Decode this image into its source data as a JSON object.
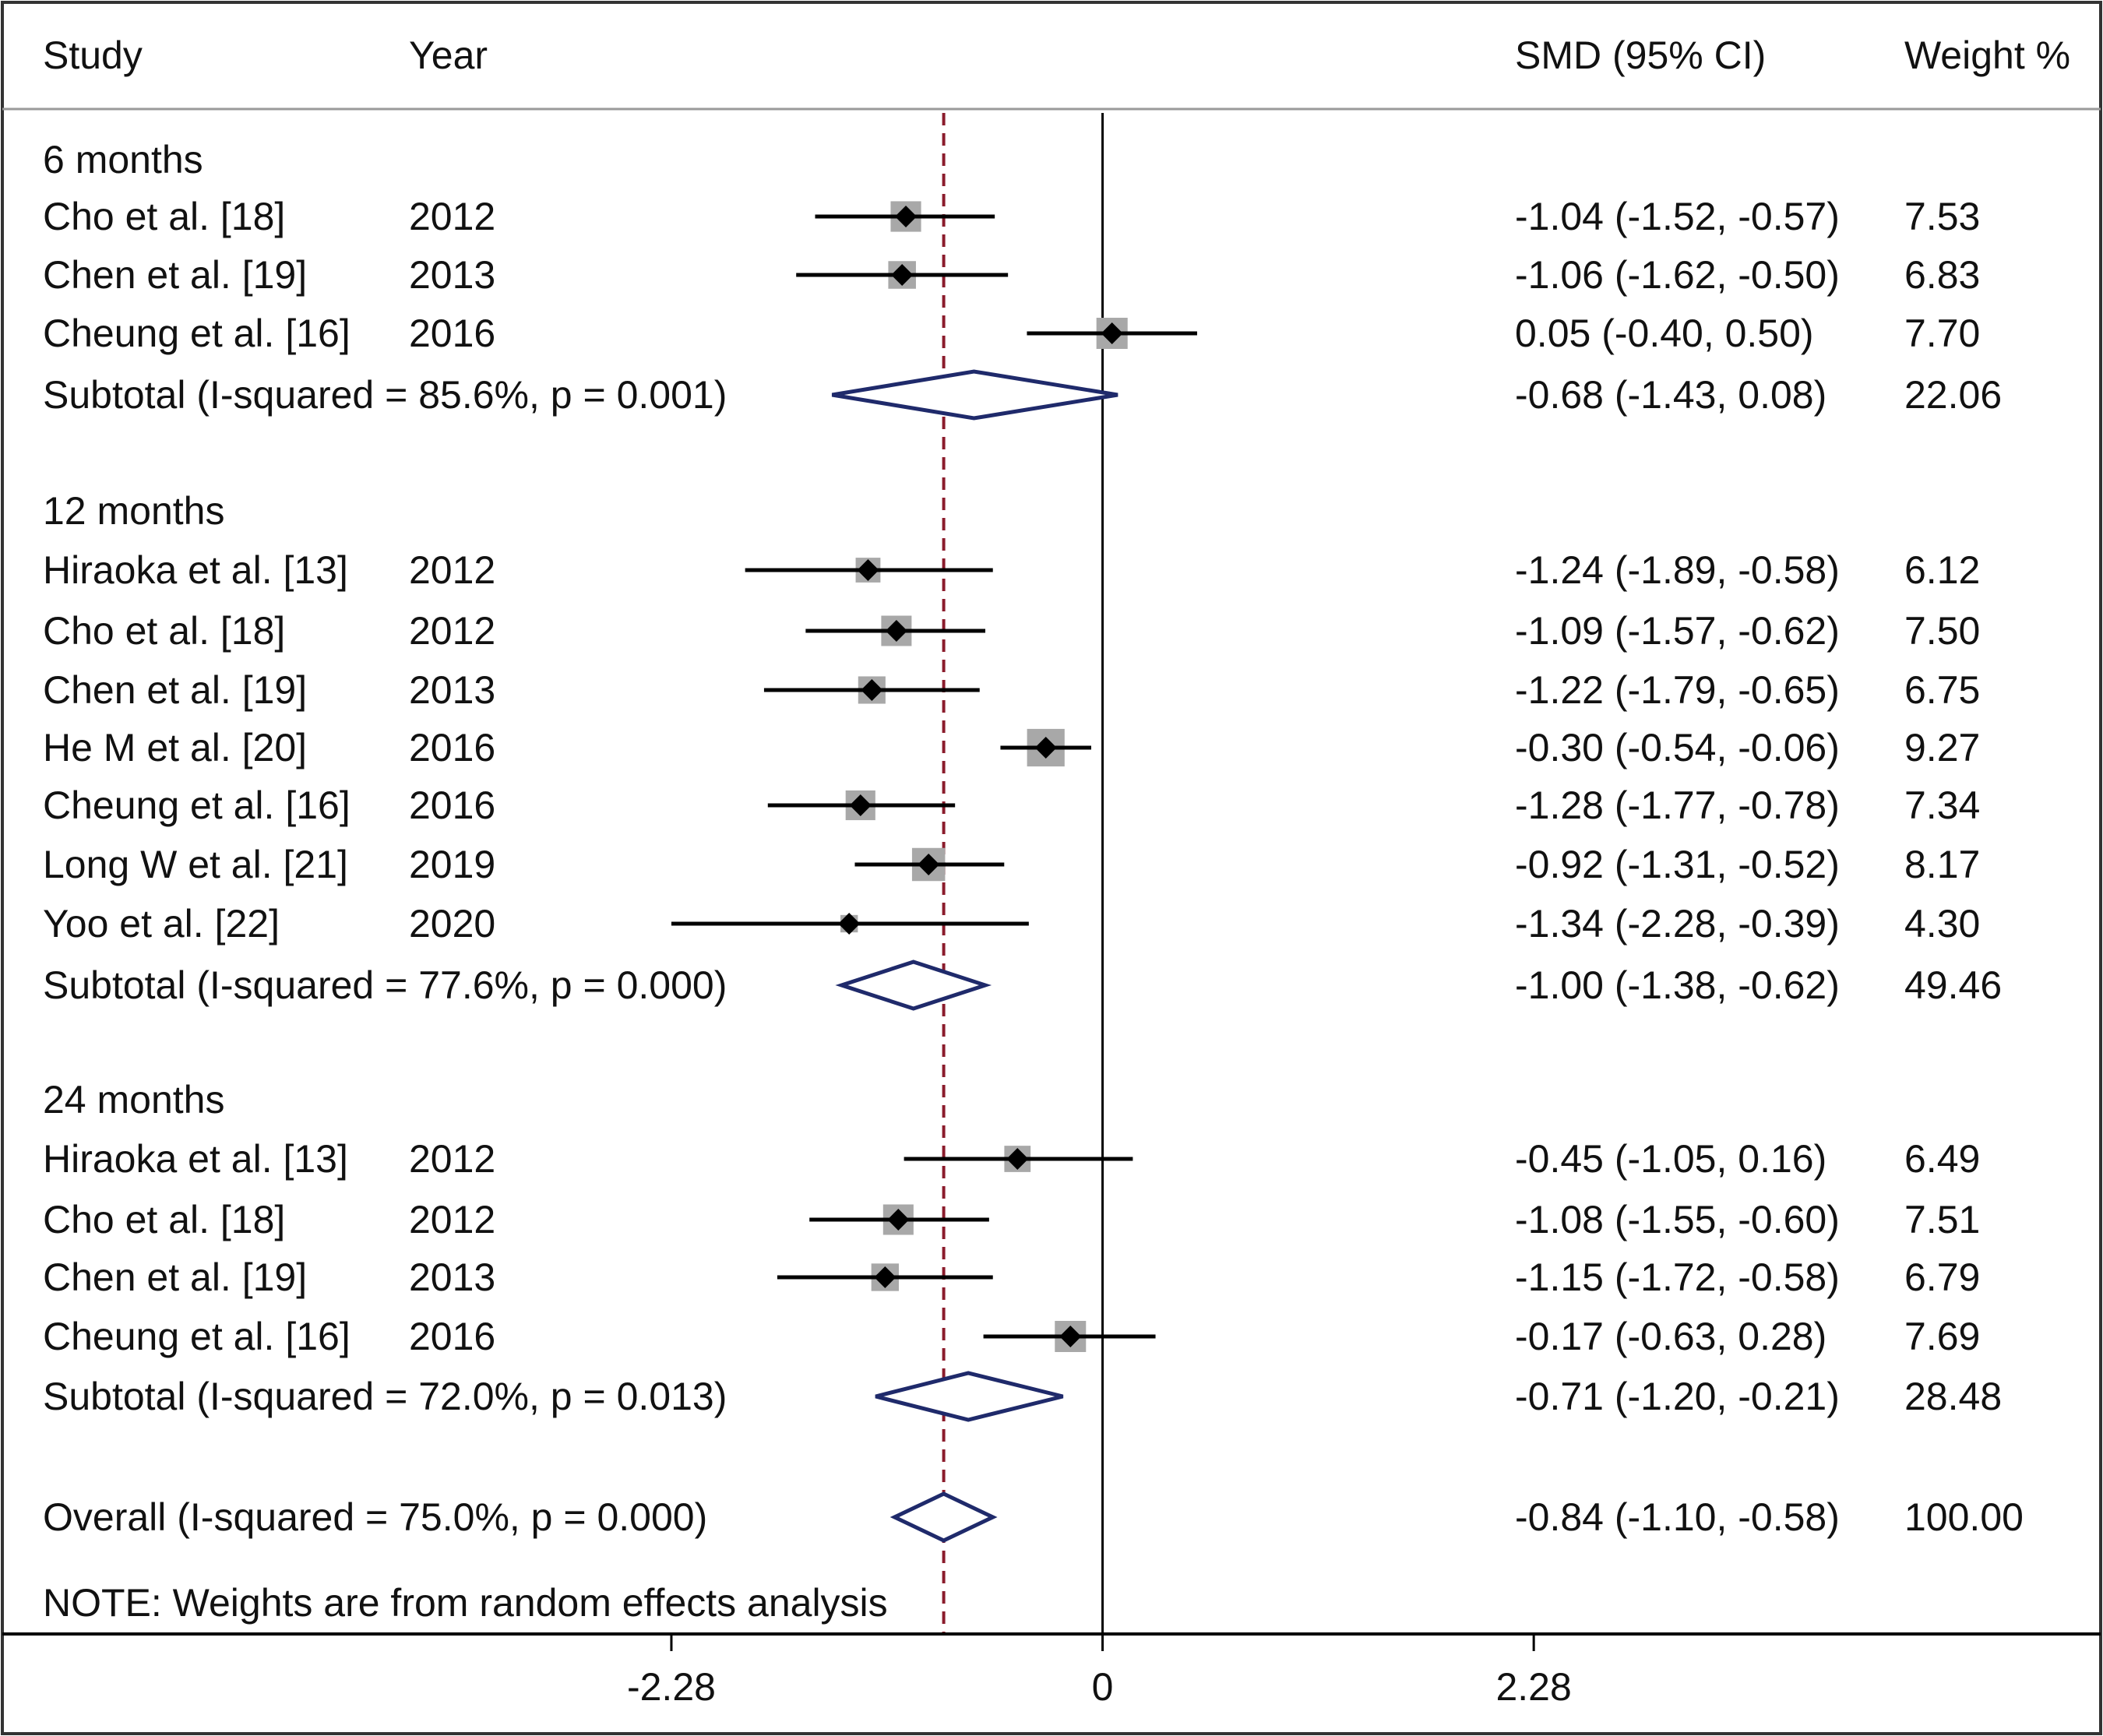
{
  "chart_data": {
    "type": "forest",
    "headers": {
      "study": "Study",
      "year": "Year",
      "effect": "SMD (95% CI)",
      "weight": "Weight %"
    },
    "x_ticks": [
      -2.28,
      0,
      2.28
    ],
    "x_tick_labels": [
      "-2.28",
      "0",
      "2.28"
    ],
    "xlim": [
      -5.83,
      5.29
    ],
    "reference_line": 0,
    "overall_line": -0.84,
    "colors": {
      "marker_box": "#a8a8a8",
      "point": "#000000",
      "diamond": "#1f2a6b",
      "overall_line": "#8b1c2c",
      "frame": "#333333"
    },
    "rows": [
      {
        "kind": "group",
        "label": "6 months"
      },
      {
        "kind": "study",
        "study": "Cho et al. [18]",
        "year": "2012",
        "est": -1.04,
        "lo": -1.52,
        "hi": -0.57,
        "ci_text": "-1.04 (-1.52, -0.57)",
        "weight": 7.53,
        "weight_text": "7.53"
      },
      {
        "kind": "study",
        "study": "Chen et al. [19]",
        "year": "2013",
        "est": -1.06,
        "lo": -1.62,
        "hi": -0.5,
        "ci_text": "-1.06 (-1.62, -0.50)",
        "weight": 6.83,
        "weight_text": "6.83"
      },
      {
        "kind": "study",
        "study": "Cheung et al. [16]",
        "year": "2016",
        "est": 0.05,
        "lo": -0.4,
        "hi": 0.5,
        "ci_text": "0.05 (-0.40, 0.50)",
        "weight": 7.7,
        "weight_text": "7.70"
      },
      {
        "kind": "subtotal",
        "label": "Subtotal  (I-squared = 85.6%, p = 0.001)",
        "est": -0.68,
        "lo": -1.43,
        "hi": 0.08,
        "ci_text": "-0.68 (-1.43, 0.08)",
        "weight_text": "22.06"
      },
      {
        "kind": "spacer"
      },
      {
        "kind": "group",
        "label": "12 months"
      },
      {
        "kind": "study",
        "study": "Hiraoka et al. [13]",
        "year": "2012",
        "est": -1.24,
        "lo": -1.89,
        "hi": -0.58,
        "ci_text": "-1.24 (-1.89, -0.58)",
        "weight": 6.12,
        "weight_text": "6.12"
      },
      {
        "kind": "study",
        "study": "Cho et al. [18]",
        "year": "2012",
        "est": -1.09,
        "lo": -1.57,
        "hi": -0.62,
        "ci_text": "-1.09 (-1.57, -0.62)",
        "weight": 7.5,
        "weight_text": "7.50"
      },
      {
        "kind": "study",
        "study": "Chen et al. [19]",
        "year": "2013",
        "est": -1.22,
        "lo": -1.79,
        "hi": -0.65,
        "ci_text": "-1.22 (-1.79, -0.65)",
        "weight": 6.75,
        "weight_text": "6.75"
      },
      {
        "kind": "study",
        "study": "He M et al. [20]",
        "year": "2016",
        "est": -0.3,
        "lo": -0.54,
        "hi": -0.06,
        "ci_text": "-0.30 (-0.54, -0.06)",
        "weight": 9.27,
        "weight_text": "9.27"
      },
      {
        "kind": "study",
        "study": "Cheung et al. [16]",
        "year": "2016",
        "est": -1.28,
        "lo": -1.77,
        "hi": -0.78,
        "ci_text": "-1.28 (-1.77, -0.78)",
        "weight": 7.34,
        "weight_text": "7.34"
      },
      {
        "kind": "study",
        "study": "Long W et al. [21]",
        "year": "2019",
        "est": -0.92,
        "lo": -1.31,
        "hi": -0.52,
        "ci_text": "-0.92 (-1.31, -0.52)",
        "weight": 8.17,
        "weight_text": "8.17"
      },
      {
        "kind": "study",
        "study": "Yoo et al. [22]",
        "year": "2020",
        "est": -1.34,
        "lo": -2.28,
        "hi": -0.39,
        "ci_text": "-1.34 (-2.28, -0.39)",
        "weight": 4.3,
        "weight_text": "4.30"
      },
      {
        "kind": "subtotal",
        "label": "Subtotal  (I-squared = 77.6%, p = 0.000)",
        "est": -1.0,
        "lo": -1.38,
        "hi": -0.62,
        "ci_text": "-1.00 (-1.38, -0.62)",
        "weight_text": "49.46"
      },
      {
        "kind": "spacer"
      },
      {
        "kind": "group",
        "label": "24 months"
      },
      {
        "kind": "study",
        "study": "Hiraoka et al. [13]",
        "year": "2012",
        "est": -0.45,
        "lo": -1.05,
        "hi": 0.16,
        "ci_text": "-0.45 (-1.05, 0.16)",
        "weight": 6.49,
        "weight_text": "6.49"
      },
      {
        "kind": "study",
        "study": "Cho et al. [18]",
        "year": "2012",
        "est": -1.08,
        "lo": -1.55,
        "hi": -0.6,
        "ci_text": "-1.08 (-1.55, -0.60)",
        "weight": 7.51,
        "weight_text": "7.51"
      },
      {
        "kind": "study",
        "study": "Chen et al. [19]",
        "year": "2013",
        "est": -1.15,
        "lo": -1.72,
        "hi": -0.58,
        "ci_text": "-1.15 (-1.72, -0.58)",
        "weight": 6.79,
        "weight_text": "6.79"
      },
      {
        "kind": "study",
        "study": "Cheung et al. [16]",
        "year": "2016",
        "est": -0.17,
        "lo": -0.63,
        "hi": 0.28,
        "ci_text": "-0.17 (-0.63, 0.28)",
        "weight": 7.69,
        "weight_text": "7.69"
      },
      {
        "kind": "subtotal",
        "label": "Subtotal  (I-squared = 72.0%, p = 0.013)",
        "est": -0.71,
        "lo": -1.2,
        "hi": -0.21,
        "ci_text": "-0.71 (-1.20, -0.21)",
        "weight_text": "28.48"
      },
      {
        "kind": "spacer"
      },
      {
        "kind": "overall",
        "label": "Overall  (I-squared = 75.0%, p = 0.000)",
        "est": -0.84,
        "lo": -1.1,
        "hi": -0.58,
        "ci_text": "-0.84 (-1.10, -0.58)",
        "weight_text": "100.00"
      }
    ],
    "note": "NOTE: Weights are from random effects analysis"
  }
}
